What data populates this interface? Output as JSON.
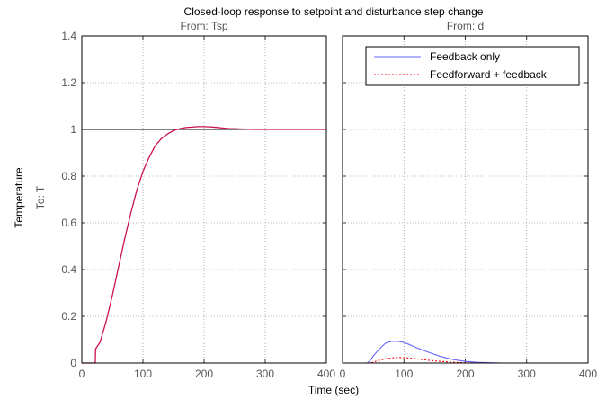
{
  "chart_data": {
    "type": "line",
    "title": "Closed-loop response to setpoint and disturbance step change",
    "xlabel": "Time (sec)",
    "ylabel": "Temperature",
    "y_channel_label": "To: T",
    "grid": true,
    "legend_position": "top-right of right panel",
    "colors": {
      "feedback_only": "#6666ff",
      "feedforward_feedback": "#ff0000",
      "setpoint_combined": "#cc1155",
      "reference": "#000000"
    },
    "panels": [
      {
        "title": "From: Tsp",
        "xlim": [
          0,
          400
        ],
        "ylim": [
          0,
          1.4
        ],
        "x_ticks": [
          "0",
          "100",
          "200",
          "300",
          "400"
        ],
        "y_ticks": [
          "0",
          "0.2",
          "0.4",
          "0.6",
          "0.8",
          "1",
          "1.2",
          "1.4"
        ],
        "series": [
          {
            "x": [
              0,
              20,
              22,
              22.5,
              30,
              40,
              50,
              60,
              70,
              80,
              90,
              100,
              110,
              120,
              130,
              140,
              150,
              160,
              170,
              180,
              190,
              200,
              210,
              220,
              230,
              240,
              250,
              260,
              270,
              280,
              300,
              400
            ],
            "y": [
              0,
              0,
              0,
              0.06,
              0.09,
              0.18,
              0.29,
              0.41,
              0.53,
              0.64,
              0.74,
              0.82,
              0.88,
              0.93,
              0.96,
              0.98,
              0.995,
              1.003,
              1.008,
              1.01,
              1.012,
              1.012,
              1.011,
              1.009,
              1.006,
              1.004,
              1.003,
              1.002,
              1.001,
              1.0,
              1.0,
              1.0
            ]
          }
        ],
        "reference_line": 1
      },
      {
        "title": "From: d",
        "xlim": [
          0,
          400
        ],
        "ylim": [
          0,
          1.4
        ],
        "x_ticks": [
          "0",
          "100",
          "200",
          "300",
          "400"
        ],
        "series": [
          {
            "name": "Feedback only",
            "x": [
              0,
              40,
              45,
              50,
              60,
              70,
              80,
              90,
              100,
              110,
              120,
              140,
              160,
              180,
              200,
              220,
              240,
              260,
              280,
              400
            ],
            "y": [
              0,
              0,
              0.01,
              0.03,
              0.06,
              0.085,
              0.093,
              0.093,
              0.088,
              0.078,
              0.066,
              0.046,
              0.028,
              0.015,
              0.007,
              0.003,
              0.001,
              0,
              0,
              0
            ]
          },
          {
            "name": "Feedforward + feedback",
            "x": [
              0,
              45,
              50,
              60,
              70,
              80,
              90,
              100,
              110,
              120,
              140,
              160,
              180,
              200,
              220,
              240,
              400
            ],
            "y": [
              0,
              0,
              0.004,
              0.012,
              0.018,
              0.022,
              0.024,
              0.023,
              0.021,
              0.018,
              0.012,
              0.007,
              0.003,
              0.001,
              0,
              0,
              0
            ]
          }
        ]
      }
    ]
  }
}
